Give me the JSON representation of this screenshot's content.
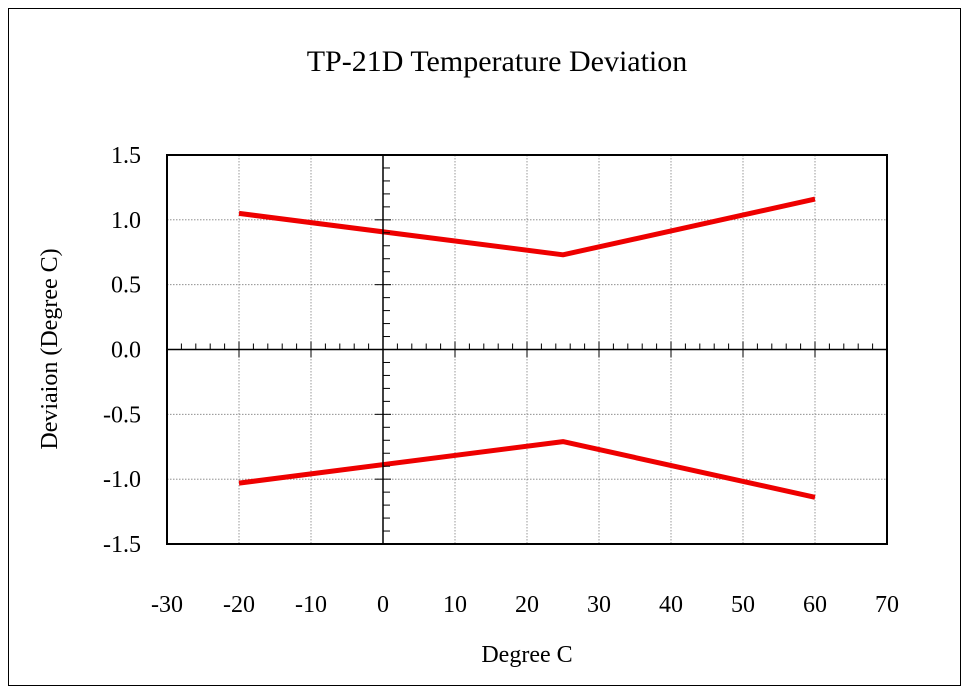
{
  "chart_data": {
    "type": "line",
    "title": "TP-21D Temperature Deviation",
    "xlabel": "Degree C",
    "ylabel": "Deviaion (Degree C)",
    "xlim": [
      -30,
      70
    ],
    "ylim": [
      -1.5,
      1.5
    ],
    "x_ticks": [
      -30,
      -20,
      -10,
      0,
      10,
      20,
      30,
      40,
      50,
      60,
      70
    ],
    "x_tick_labels": [
      "-30",
      "-20",
      "-10",
      "0",
      "10",
      "20",
      "30",
      "40",
      "50",
      "60",
      "70"
    ],
    "y_ticks": [
      1.5,
      1.0,
      0.5,
      0.0,
      -0.5,
      -1.0,
      -1.5
    ],
    "y_tick_labels": [
      "1.5",
      "1.0",
      "0.5",
      "0.0",
      "-0.5",
      "-1.0",
      "-1.5"
    ],
    "grid": true,
    "series": [
      {
        "color": "#ee0000",
        "x": [
          -20,
          25,
          60
        ],
        "y": [
          1.05,
          0.73,
          1.16
        ]
      },
      {
        "color": "#ee0000",
        "x": [
          -20,
          25,
          60
        ],
        "y": [
          -1.03,
          -0.71,
          -1.14
        ]
      }
    ]
  }
}
